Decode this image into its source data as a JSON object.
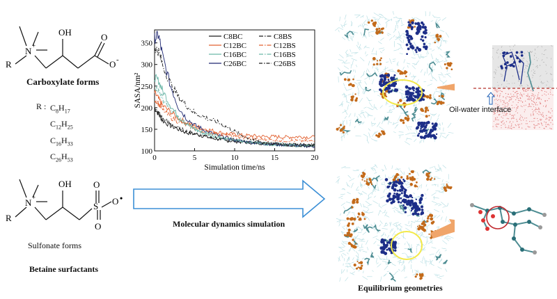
{
  "chem": {
    "carboxylate_title": "Carboxylate forms",
    "sulfonate_title": "Sulfonate forms",
    "betaine_title": "Betaine surfactants",
    "r_label": "R",
    "r_groups_header": "R :",
    "r_groups": [
      {
        "c": "C",
        "cn": "8",
        "h": "H",
        "hn": "17"
      },
      {
        "c": "C",
        "cn": "12",
        "h": "H",
        "hn": "25"
      },
      {
        "c": "C",
        "cn": "16",
        "h": "H",
        "hn": "33"
      },
      {
        "c": "C",
        "cn": "26",
        "h": "H",
        "hn": "53"
      }
    ],
    "n_atom": "N",
    "n_charge": "+",
    "oh": "OH",
    "o": "O",
    "o_minus": "O",
    "minus": "-",
    "s": "S",
    "charge_dot": "•"
  },
  "arrow_label": "Molecular dynamics simulation",
  "interface_label": "Oil-water interface",
  "equilibrium_label": "Equilibrium geometries",
  "colors": {
    "arrow_fill": "#ffffff",
    "arrow_stroke": "#3b8fd6",
    "orange_arrow": "#f0a56a",
    "interface_line": "#b3322b",
    "circle_yellow": "#f3e94a",
    "circle_red": "#c0272d",
    "water": "#a8d8de",
    "surf_orange": "#c36a1a",
    "surf_blue": "#1d2e88",
    "surf_teal": "#4e8d93"
  },
  "chart_data": {
    "type": "line",
    "xlabel": "Simulation time/ns",
    "ylabel": "SASA/nm²",
    "xlim": [
      0,
      20
    ],
    "ylim": [
      100,
      380
    ],
    "xticks": [
      0,
      5,
      10,
      15,
      20
    ],
    "yticks": [
      100,
      150,
      200,
      250,
      300,
      350
    ],
    "legend_position": "top-right",
    "series": [
      {
        "name": "C8BC",
        "color": "#1b1b1b",
        "dash": "",
        "x": [
          0,
          0.5,
          1,
          2,
          3,
          4,
          5,
          6,
          7,
          8,
          9,
          10,
          11,
          12,
          13,
          14,
          15,
          16,
          17,
          18,
          19,
          20
        ],
        "y": [
          200,
          185,
          170,
          158,
          150,
          142,
          140,
          135,
          130,
          127,
          124,
          122,
          120,
          119,
          118,
          117,
          116,
          115,
          114,
          113,
          112,
          112
        ]
      },
      {
        "name": "C12BC",
        "color": "#e2602f",
        "dash": "",
        "x": [
          0,
          0.5,
          1,
          2,
          3,
          4,
          5,
          6,
          7,
          8,
          9,
          10,
          11,
          12,
          13,
          14,
          15,
          16,
          17,
          18,
          19,
          20
        ],
        "y": [
          235,
          220,
          205,
          190,
          175,
          165,
          158,
          152,
          148,
          143,
          140,
          138,
          136,
          135,
          134,
          133,
          133,
          132,
          132,
          133,
          132,
          132
        ]
      },
      {
        "name": "C16BC",
        "color": "#6bb6a8",
        "dash": "",
        "x": [
          0,
          0.5,
          1,
          2,
          3,
          4,
          5,
          6,
          7,
          8,
          9,
          10,
          11,
          12,
          13,
          14,
          15,
          16,
          17,
          18,
          19,
          20
        ],
        "y": [
          270,
          262,
          240,
          205,
          178,
          162,
          150,
          142,
          136,
          132,
          128,
          125,
          122,
          120,
          118,
          116,
          115,
          114,
          113,
          112,
          112,
          111
        ]
      },
      {
        "name": "C26BC",
        "color": "#1d2670",
        "dash": "",
        "x": [
          0,
          0.5,
          1,
          2,
          3,
          4,
          5,
          6,
          7,
          8,
          9,
          10,
          11,
          12,
          13,
          14,
          15,
          16,
          17,
          18,
          19,
          20
        ],
        "y": [
          360,
          368,
          320,
          250,
          200,
          175,
          160,
          150,
          142,
          135,
          130,
          125,
          122,
          120,
          118,
          116,
          115,
          114,
          113,
          112,
          111,
          110
        ]
      },
      {
        "name": "C8BS",
        "color": "#1b1b1b",
        "dash": "6,2,1.5,2",
        "x": [
          0,
          0.5,
          1,
          2,
          3,
          4,
          5,
          6,
          7,
          8,
          9,
          10,
          11,
          12,
          13,
          14,
          15,
          16,
          17,
          18,
          19,
          20
        ],
        "y": [
          195,
          188,
          175,
          162,
          152,
          145,
          140,
          136,
          132,
          128,
          125,
          123,
          121,
          120,
          119,
          118,
          117,
          116,
          115,
          114,
          114,
          113
        ]
      },
      {
        "name": "C12BS",
        "color": "#e2602f",
        "dash": "6,2,1.5,2",
        "x": [
          0,
          0.5,
          1,
          2,
          3,
          4,
          5,
          6,
          7,
          8,
          9,
          10,
          11,
          12,
          13,
          14,
          15,
          16,
          17,
          18,
          19,
          20
        ],
        "y": [
          220,
          210,
          195,
          178,
          168,
          160,
          152,
          146,
          142,
          138,
          135,
          132,
          130,
          128,
          127,
          126,
          125,
          124,
          124,
          123,
          123,
          122
        ]
      },
      {
        "name": "C16BS",
        "color": "#6bb6a8",
        "dash": "6,2,1.5,2",
        "x": [
          0,
          0.5,
          1,
          2,
          3,
          4,
          5,
          6,
          7,
          8,
          9,
          10,
          11,
          12,
          13,
          14,
          15,
          16,
          17,
          18,
          19,
          20
        ],
        "y": [
          250,
          240,
          222,
          196,
          176,
          162,
          152,
          144,
          138,
          133,
          129,
          126,
          123,
          121,
          119,
          117,
          116,
          115,
          114,
          113,
          113,
          112
        ]
      },
      {
        "name": "C26BS",
        "color": "#1b1b1b",
        "dash": "5,2,1.5,2",
        "x": [
          0,
          0.5,
          1,
          2,
          3,
          4,
          5,
          6,
          7,
          8,
          9,
          10,
          11,
          12,
          13,
          14,
          15,
          16,
          17,
          18,
          19,
          20
        ],
        "y": [
          340,
          330,
          300,
          255,
          225,
          205,
          188,
          180,
          172,
          165,
          155,
          145,
          135,
          128,
          122,
          118,
          116,
          114,
          113,
          112,
          112,
          111
        ]
      }
    ]
  }
}
